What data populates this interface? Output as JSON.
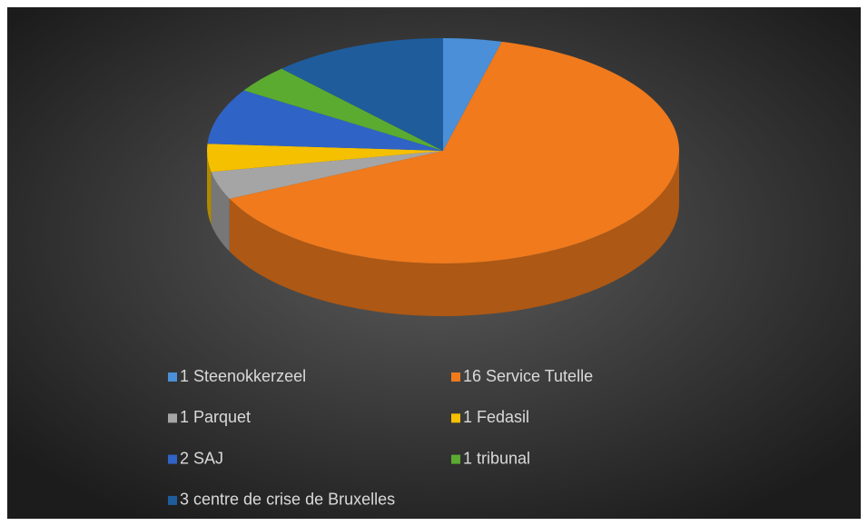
{
  "chart_data": {
    "type": "pie3d",
    "categories": [
      "1 Steenokkerzeel",
      "16  Service Tutelle",
      "1 Parquet",
      "1 Fedasil",
      "2  SAJ",
      "1 tribunal",
      "3 centre de crise de Bruxelles"
    ],
    "values": [
      1,
      16,
      1,
      1,
      2,
      1,
      3
    ],
    "colors": [
      "#4a8fd8",
      "#f07a1c",
      "#a5a5a5",
      "#f5c000",
      "#2f63c6",
      "#5aab30",
      "#1f5c9c"
    ],
    "legend": "bottom"
  }
}
